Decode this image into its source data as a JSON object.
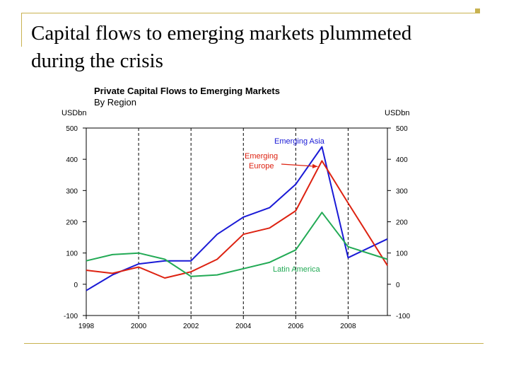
{
  "slide": {
    "title_line1": "Capital flows to emerging markets plummeted",
    "title_line2": "during the crisis"
  },
  "chart_data": {
    "type": "line",
    "title": "Private Capital Flows to Emerging Markets",
    "subtitle": "By Region",
    "y_unit_left": "USDbn",
    "y_unit_right": "USDbn",
    "xlim": [
      1998,
      2009.5
    ],
    "ylim": [
      -100,
      500
    ],
    "x_ticks": [
      1998,
      2000,
      2002,
      2004,
      2006,
      2008
    ],
    "y_ticks": [
      -100,
      0,
      100,
      200,
      300,
      400,
      500
    ],
    "grid": "vertical dashed",
    "annotation_pointer_target": [
      2007,
      395
    ],
    "series": [
      {
        "name": "Emerging Asia",
        "color": "#1a1ad6",
        "points": [
          [
            1998,
            -20
          ],
          [
            1999,
            30
          ],
          [
            2000,
            65
          ],
          [
            2001,
            75
          ],
          [
            2002,
            75
          ],
          [
            2003,
            160
          ],
          [
            2004,
            215
          ],
          [
            2005,
            245
          ],
          [
            2006,
            320
          ],
          [
            2007,
            440
          ],
          [
            2008,
            85
          ],
          [
            2009.5,
            145
          ]
        ]
      },
      {
        "name": "Emerging Europe",
        "color": "#dd2211",
        "points": [
          [
            1998,
            45
          ],
          [
            1999,
            35
          ],
          [
            2000,
            55
          ],
          [
            2001,
            20
          ],
          [
            2002,
            40
          ],
          [
            2003,
            80
          ],
          [
            2004,
            160
          ],
          [
            2005,
            180
          ],
          [
            2006,
            235
          ],
          [
            2007,
            395
          ],
          [
            2008,
            260
          ],
          [
            2009.5,
            60
          ]
        ]
      },
      {
        "name": "Latin America",
        "color": "#22aa55",
        "points": [
          [
            1998,
            75
          ],
          [
            1999,
            95
          ],
          [
            2000,
            100
          ],
          [
            2001,
            80
          ],
          [
            2002,
            25
          ],
          [
            2003,
            30
          ],
          [
            2004,
            50
          ],
          [
            2005,
            70
          ],
          [
            2006,
            110
          ],
          [
            2007,
            230
          ],
          [
            2008,
            120
          ],
          [
            2009.5,
            80
          ]
        ]
      }
    ]
  }
}
